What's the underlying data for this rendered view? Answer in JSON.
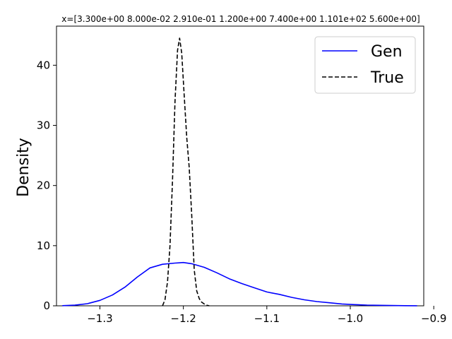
{
  "chart_data": {
    "type": "line",
    "title": "x=[3.300e+00 8.000e-02 2.910e-01 1.200e+00 7.400e+00 1.101e+02 5.600e+00]",
    "xlabel": "",
    "ylabel": "Density",
    "xlim": [
      -1.352,
      -0.912
    ],
    "ylim": [
      0,
      46.5
    ],
    "xticks": [
      -1.3,
      -1.2,
      -1.1,
      -1.0,
      -0.9
    ],
    "xtick_labels": [
      "−1.3",
      "−1.2",
      "−1.1",
      "−1.0",
      "−0.9"
    ],
    "yticks": [
      0,
      10,
      20,
      30,
      40
    ],
    "ytick_labels": [
      "0",
      "10",
      "20",
      "30",
      "40"
    ],
    "grid": false,
    "legend_position": "upper-right",
    "series": [
      {
        "name": "Gen",
        "color": "#0000ff",
        "linestyle": "solid",
        "x": [
          -1.345,
          -1.33,
          -1.315,
          -1.3,
          -1.285,
          -1.27,
          -1.255,
          -1.24,
          -1.225,
          -1.21,
          -1.2,
          -1.19,
          -1.175,
          -1.16,
          -1.145,
          -1.13,
          -1.115,
          -1.1,
          -1.085,
          -1.07,
          -1.055,
          -1.04,
          -1.025,
          -1.01,
          -0.995,
          -0.98,
          -0.965,
          -0.95,
          -0.935,
          -0.92
        ],
        "y": [
          0.02,
          0.1,
          0.35,
          0.9,
          1.8,
          3.1,
          4.8,
          6.3,
          6.9,
          7.1,
          7.2,
          7.0,
          6.4,
          5.5,
          4.5,
          3.7,
          3.0,
          2.3,
          1.9,
          1.4,
          1.0,
          0.7,
          0.5,
          0.3,
          0.2,
          0.12,
          0.08,
          0.05,
          0.02,
          0.01
        ]
      },
      {
        "name": "True",
        "color": "#000000",
        "linestyle": "dashed",
        "x": [
          -1.225,
          -1.222,
          -1.219,
          -1.216,
          -1.213,
          -1.21,
          -1.207,
          -1.2045,
          -1.202,
          -1.199,
          -1.196,
          -1.193,
          -1.19,
          -1.187,
          -1.184,
          -1.181,
          -1.178,
          -1.175,
          -1.172,
          -1.169
        ],
        "y": [
          0.0,
          1.0,
          4.0,
          10.0,
          21.0,
          34.0,
          42.5,
          44.5,
          42.0,
          35.0,
          28.0,
          23.0,
          15.0,
          6.0,
          2.5,
          1.2,
          0.6,
          0.3,
          0.1,
          0.0
        ]
      }
    ]
  }
}
